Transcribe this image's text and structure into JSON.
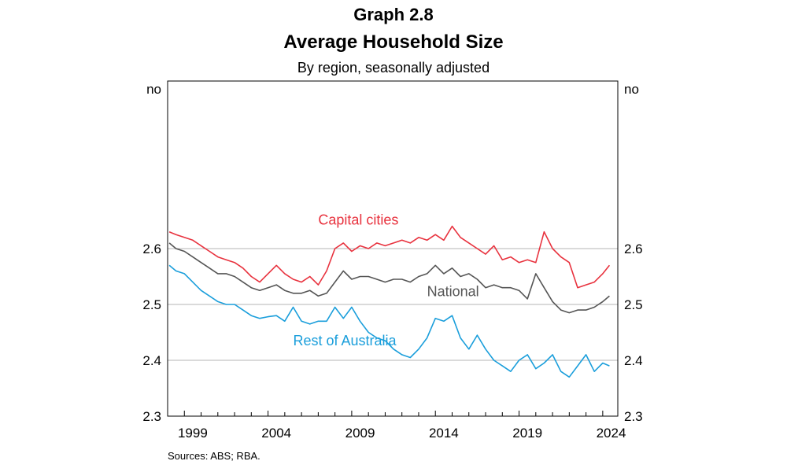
{
  "header": {
    "graph_number": "Graph 2.8",
    "title": "Average Household Size",
    "subtitle": "By region, seasonally adjusted"
  },
  "source": "Sources: ABS; RBA.",
  "chart_data": {
    "type": "line",
    "title": "Average Household Size",
    "subtitle": "By region, seasonally adjusted",
    "y_unit_left": "no",
    "y_unit_right": "no",
    "ylim": [
      2.3,
      2.9
    ],
    "yticks": [
      2.3,
      2.4,
      2.5,
      2.6
    ],
    "xlim": [
      1998.0,
      2024.9
    ],
    "xticks": [
      1999,
      2004,
      2009,
      2014,
      2019,
      2024
    ],
    "grid": "horizontal",
    "series": [
      {
        "name": "Capital cities",
        "color": "#e8323e",
        "label_pos": [
          2007.0,
          2.643
        ],
        "x": [
          1998.1,
          1998.5,
          1999.0,
          1999.5,
          2000.0,
          2000.5,
          2001.0,
          2001.5,
          2002.0,
          2002.5,
          2003.0,
          2003.5,
          2004.0,
          2004.5,
          2005.0,
          2005.5,
          2006.0,
          2006.5,
          2007.0,
          2007.5,
          2008.0,
          2008.5,
          2009.0,
          2009.5,
          2010.0,
          2010.5,
          2011.0,
          2011.5,
          2012.0,
          2012.5,
          2013.0,
          2013.5,
          2014.0,
          2014.5,
          2015.0,
          2015.5,
          2016.0,
          2016.5,
          2017.0,
          2017.5,
          2018.0,
          2018.5,
          2019.0,
          2019.5,
          2020.0,
          2020.5,
          2021.0,
          2021.5,
          2022.0,
          2022.5,
          2023.0,
          2023.5,
          2024.0,
          2024.4
        ],
        "values": [
          2.63,
          2.625,
          2.62,
          2.615,
          2.605,
          2.595,
          2.585,
          2.58,
          2.575,
          2.565,
          2.55,
          2.54,
          2.555,
          2.57,
          2.555,
          2.545,
          2.54,
          2.55,
          2.535,
          2.56,
          2.6,
          2.61,
          2.595,
          2.605,
          2.6,
          2.61,
          2.605,
          2.61,
          2.615,
          2.61,
          2.62,
          2.615,
          2.625,
          2.615,
          2.64,
          2.62,
          2.61,
          2.6,
          2.59,
          2.605,
          2.58,
          2.585,
          2.575,
          2.58,
          2.575,
          2.63,
          2.6,
          2.585,
          2.575,
          2.53,
          2.535,
          2.54,
          2.555,
          2.57
        ]
      },
      {
        "name": "National",
        "color": "#555555",
        "label_pos": [
          2013.5,
          2.515
        ],
        "x": [
          1998.1,
          1998.5,
          1999.0,
          1999.5,
          2000.0,
          2000.5,
          2001.0,
          2001.5,
          2002.0,
          2002.5,
          2003.0,
          2003.5,
          2004.0,
          2004.5,
          2005.0,
          2005.5,
          2006.0,
          2006.5,
          2007.0,
          2007.5,
          2008.0,
          2008.5,
          2009.0,
          2009.5,
          2010.0,
          2010.5,
          2011.0,
          2011.5,
          2012.0,
          2012.5,
          2013.0,
          2013.5,
          2014.0,
          2014.5,
          2015.0,
          2015.5,
          2016.0,
          2016.5,
          2017.0,
          2017.5,
          2018.0,
          2018.5,
          2019.0,
          2019.5,
          2020.0,
          2020.5,
          2021.0,
          2021.5,
          2022.0,
          2022.5,
          2023.0,
          2023.5,
          2024.0,
          2024.4
        ],
        "values": [
          2.61,
          2.6,
          2.595,
          2.585,
          2.575,
          2.565,
          2.555,
          2.555,
          2.55,
          2.54,
          2.53,
          2.525,
          2.53,
          2.535,
          2.525,
          2.52,
          2.52,
          2.525,
          2.515,
          2.52,
          2.54,
          2.56,
          2.545,
          2.55,
          2.55,
          2.545,
          2.54,
          2.545,
          2.545,
          2.54,
          2.55,
          2.555,
          2.57,
          2.555,
          2.565,
          2.55,
          2.555,
          2.545,
          2.53,
          2.535,
          2.53,
          2.53,
          2.525,
          2.51,
          2.555,
          2.53,
          2.505,
          2.49,
          2.485,
          2.49,
          2.49,
          2.495,
          2.505,
          2.515
        ]
      },
      {
        "name": "Rest of Australia",
        "color": "#1a9edb",
        "label_pos": [
          2005.5,
          2.427
        ],
        "x": [
          1998.1,
          1998.5,
          1999.0,
          1999.5,
          2000.0,
          2000.5,
          2001.0,
          2001.5,
          2002.0,
          2002.5,
          2003.0,
          2003.5,
          2004.0,
          2004.5,
          2005.0,
          2005.5,
          2006.0,
          2006.5,
          2007.0,
          2007.5,
          2008.0,
          2008.5,
          2009.0,
          2009.5,
          2010.0,
          2010.5,
          2011.0,
          2011.5,
          2012.0,
          2012.5,
          2013.0,
          2013.5,
          2014.0,
          2014.5,
          2015.0,
          2015.5,
          2016.0,
          2016.5,
          2017.0,
          2017.5,
          2018.0,
          2018.5,
          2019.0,
          2019.5,
          2020.0,
          2020.5,
          2021.0,
          2021.5,
          2022.0,
          2022.5,
          2023.0,
          2023.5,
          2024.0,
          2024.4
        ],
        "values": [
          2.57,
          2.56,
          2.555,
          2.54,
          2.525,
          2.515,
          2.505,
          2.5,
          2.5,
          2.49,
          2.48,
          2.475,
          2.478,
          2.48,
          2.47,
          2.495,
          2.47,
          2.465,
          2.47,
          2.47,
          2.495,
          2.475,
          2.495,
          2.47,
          2.45,
          2.44,
          2.435,
          2.42,
          2.41,
          2.405,
          2.42,
          2.44,
          2.475,
          2.47,
          2.48,
          2.44,
          2.42,
          2.445,
          2.42,
          2.4,
          2.39,
          2.38,
          2.4,
          2.41,
          2.385,
          2.395,
          2.41,
          2.38,
          2.37,
          2.39,
          2.41,
          2.38,
          2.395,
          2.39
        ]
      }
    ]
  }
}
